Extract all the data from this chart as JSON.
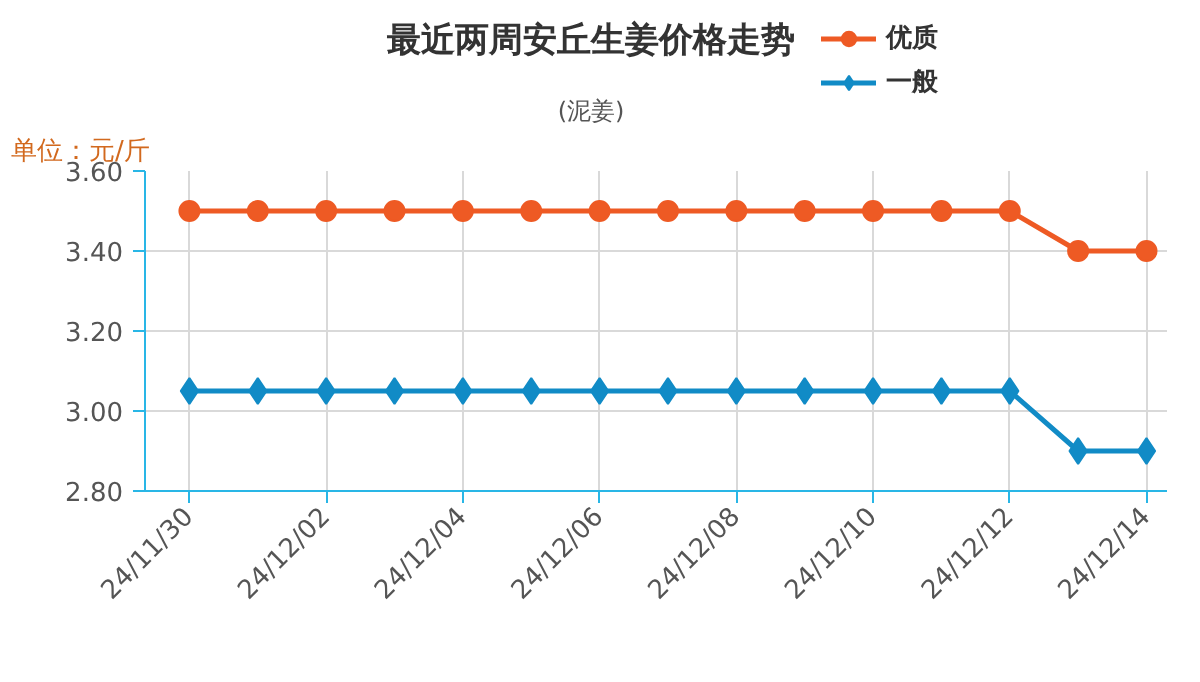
{
  "chart_data": {
    "type": "line",
    "title": "最近两周安丘生姜价格走势",
    "subtitle": "(泥姜)",
    "ylabel": "单位：元/斤",
    "categories": [
      "24/11/30",
      null,
      "24/12/02",
      null,
      "24/12/04",
      null,
      "24/12/06",
      null,
      "24/12/08",
      null,
      "24/12/10",
      null,
      "24/12/12",
      null,
      "24/12/14"
    ],
    "series": [
      {
        "name": "优质",
        "color": "#ee5a24",
        "marker": "circle",
        "values": [
          3.5,
          3.5,
          3.5,
          3.5,
          3.5,
          3.5,
          3.5,
          3.5,
          3.5,
          3.5,
          3.5,
          3.5,
          3.5,
          3.4,
          3.4
        ]
      },
      {
        "name": "一般",
        "color": "#118bc6",
        "marker": "diamond",
        "values": [
          3.05,
          3.05,
          3.05,
          3.05,
          3.05,
          3.05,
          3.05,
          3.05,
          3.05,
          3.05,
          3.05,
          3.05,
          3.05,
          2.9,
          2.9
        ]
      }
    ],
    "ylim": [
      2.8,
      3.6
    ],
    "yticks": [
      {
        "value": 2.8,
        "label": "2.80"
      },
      {
        "value": 3.0,
        "label": "3.00"
      },
      {
        "value": 3.2,
        "label": "3.20"
      },
      {
        "value": 3.4,
        "label": "3.40"
      },
      {
        "value": 3.6,
        "label": "3.60"
      }
    ],
    "grid": true,
    "legend": "top right",
    "line_style": "solid"
  }
}
